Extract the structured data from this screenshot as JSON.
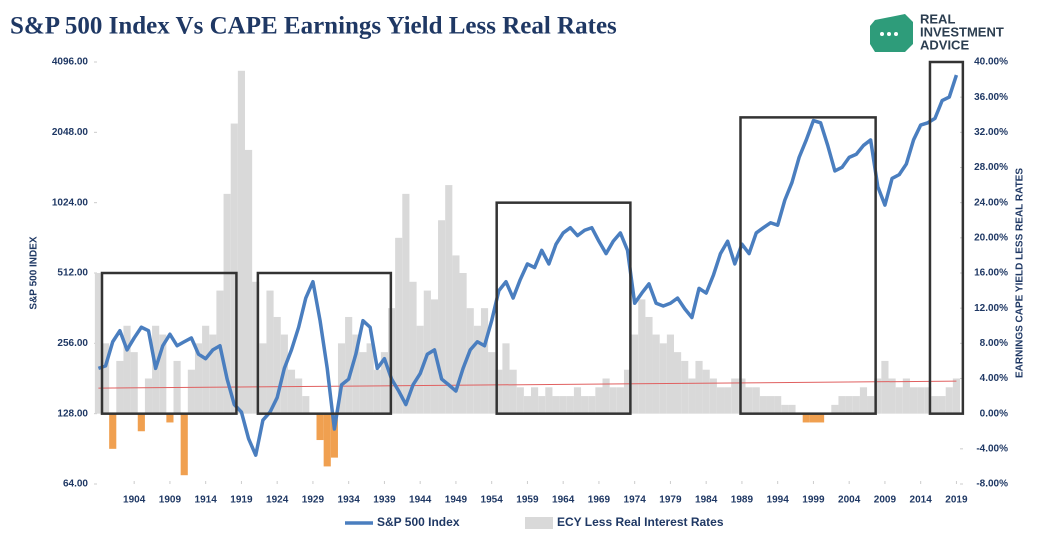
{
  "chart_data": {
    "type": "combo",
    "title": "S&P 500 Index Vs CAPE Earnings Yield Less Real Rates",
    "logo": [
      "REAL",
      "INVESTMENT",
      "ADVICE"
    ],
    "ylabel": "S&P 500 INDEX",
    "y2label": "EARNINGS CAPE YIELD LESS REAL RATES",
    "log_y": true,
    "xlim": [
      1898.8,
      2019.5
    ],
    "xticks": [
      1904,
      1909,
      1914,
      1919,
      1924,
      1929,
      1934,
      1939,
      1944,
      1949,
      1954,
      1959,
      1964,
      1969,
      1974,
      1979,
      1984,
      1989,
      1994,
      1999,
      2004,
      2009,
      2014,
      2019
    ],
    "ylim": [
      64,
      4096
    ],
    "yticks": [
      {
        "value": 64,
        "label": "64.00"
      },
      {
        "value": 128,
        "label": "128.00"
      },
      {
        "value": 256,
        "label": "256.00"
      },
      {
        "value": 512,
        "label": "512.00"
      },
      {
        "value": 1024,
        "label": "1024.00"
      },
      {
        "value": 2048,
        "label": "2048.00"
      },
      {
        "value": 4096,
        "label": "4096.00"
      }
    ],
    "y2lim": [
      -8,
      40
    ],
    "y2ticks": [
      {
        "value": -8,
        "label": "-8.00%"
      },
      {
        "value": -4,
        "label": "-4.00%"
      },
      {
        "value": 0,
        "label": "0.00%"
      },
      {
        "value": 4,
        "label": "4.00%"
      },
      {
        "value": 8,
        "label": "8.00%"
      },
      {
        "value": 12,
        "label": "12.00%"
      },
      {
        "value": 16,
        "label": "16.00%"
      },
      {
        "value": 20,
        "label": "20.00%"
      },
      {
        "value": 24,
        "label": "24.00%"
      },
      {
        "value": 28,
        "label": "28.00%"
      },
      {
        "value": 32,
        "label": "32.00%"
      },
      {
        "value": 36,
        "label": "36.00%"
      },
      {
        "value": 40,
        "label": "40.00%"
      }
    ],
    "grid": false,
    "x": [
      1899,
      1900,
      1901,
      1902,
      1903,
      1904,
      1905,
      1906,
      1907,
      1908,
      1909,
      1910,
      1911,
      1912,
      1913,
      1914,
      1915,
      1916,
      1917,
      1918,
      1919,
      1920,
      1921,
      1922,
      1923,
      1924,
      1925,
      1926,
      1927,
      1928,
      1929,
      1930,
      1931,
      1932,
      1933,
      1934,
      1935,
      1936,
      1937,
      1938,
      1939,
      1940,
      1941,
      1942,
      1943,
      1944,
      1945,
      1946,
      1947,
      1948,
      1949,
      1950,
      1951,
      1952,
      1953,
      1954,
      1955,
      1956,
      1957,
      1958,
      1959,
      1960,
      1961,
      1962,
      1963,
      1964,
      1965,
      1966,
      1967,
      1968,
      1969,
      1970,
      1971,
      1972,
      1973,
      1974,
      1975,
      1976,
      1977,
      1978,
      1979,
      1980,
      1981,
      1982,
      1983,
      1984,
      1985,
      1986,
      1987,
      1988,
      1989,
      1990,
      1991,
      1992,
      1993,
      1994,
      1995,
      1996,
      1997,
      1998,
      1999,
      2000,
      2001,
      2002,
      2003,
      2004,
      2005,
      2006,
      2007,
      2008,
      2009,
      2010,
      2011,
      2012,
      2013,
      2014,
      2015,
      2016,
      2017,
      2018,
      2019
    ],
    "series": [
      {
        "name": "S&P 500 Index",
        "kind": "line",
        "color": "#4a7ebf",
        "axis": "y",
        "values": [
          200,
          205,
          260,
          290,
          240,
          270,
          300,
          290,
          200,
          250,
          280,
          250,
          260,
          270,
          230,
          220,
          240,
          250,
          180,
          140,
          130,
          100,
          85,
          120,
          130,
          150,
          200,
          240,
          300,
          400,
          470,
          320,
          200,
          110,
          170,
          180,
          230,
          320,
          300,
          200,
          220,
          180,
          160,
          140,
          170,
          190,
          230,
          240,
          180,
          170,
          160,
          200,
          240,
          260,
          250,
          320,
          430,
          470,
          400,
          480,
          560,
          540,
          640,
          560,
          680,
          760,
          800,
          740,
          780,
          800,
          700,
          620,
          700,
          760,
          640,
          380,
          420,
          460,
          380,
          370,
          380,
          400,
          360,
          330,
          440,
          420,
          500,
          620,
          700,
          560,
          680,
          620,
          760,
          800,
          840,
          820,
          1050,
          1250,
          1600,
          1900,
          2300,
          2250,
          1800,
          1400,
          1450,
          1600,
          1650,
          1800,
          1900,
          1200,
          1000,
          1300,
          1350,
          1500,
          1900,
          2200,
          2250,
          2350,
          2800,
          2900,
          3600
        ]
      },
      {
        "name": "ECY Less Real Interest Rates",
        "kind": "bar",
        "color": "#d9d9d9",
        "negative_color": "#f0a050",
        "axis": "y2",
        "values": [
          16,
          8,
          -4,
          6,
          10,
          7,
          -2,
          4,
          10,
          9,
          -1,
          6,
          -7,
          5,
          8,
          10,
          9,
          14,
          25,
          33,
          39,
          30,
          15,
          8,
          14,
          11,
          9,
          5,
          4,
          2,
          0,
          -3,
          -6,
          -5,
          8,
          11,
          9,
          7,
          8,
          5,
          7,
          12,
          20,
          25,
          15,
          10,
          14,
          13,
          22,
          26,
          18,
          16,
          12,
          10,
          12,
          7,
          5,
          8,
          5,
          3,
          2,
          3,
          2,
          3,
          2,
          2,
          2,
          3,
          2,
          2,
          3,
          4,
          3,
          3,
          5,
          9,
          13,
          11,
          9,
          8,
          9,
          7,
          6,
          4,
          6,
          5,
          4,
          3,
          3,
          4,
          4,
          3,
          3,
          2,
          2,
          2,
          1,
          1,
          0,
          -1,
          -1,
          -1,
          0,
          1,
          2,
          2,
          2,
          3,
          2,
          4,
          6,
          4,
          3,
          4,
          3,
          3,
          3,
          2,
          2,
          3,
          4
        ]
      }
    ],
    "trendline": {
      "color": "#e06060",
      "x": [
        1899,
        2019
      ],
      "values": [
        2.9,
        3.7
      ]
    },
    "boxes": [
      {
        "x": [
          1899.5,
          1918.3
        ],
        "y": [
          0,
          16
        ]
      },
      {
        "x": [
          1921.3,
          1939.9
        ],
        "y": [
          0,
          16
        ]
      },
      {
        "x": [
          1954.7,
          1973.4
        ],
        "y": [
          0,
          24
        ]
      },
      {
        "x": [
          1988.8,
          2007.7
        ],
        "y": [
          0,
          33.7
        ]
      },
      {
        "x": [
          2015.3,
          2019.9
        ],
        "y": [
          0,
          40
        ]
      }
    ],
    "legend": "bottom"
  }
}
